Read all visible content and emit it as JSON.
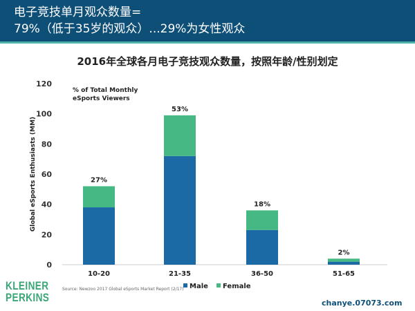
{
  "header": {
    "line1": "电子竞技单月观众数量=",
    "line2": "79%（低于35岁的观众）...29%为女性观众"
  },
  "colors": {
    "male": "#1b6aa5",
    "female": "#45b883",
    "header": "#0e4f78"
  },
  "chart_data": {
    "type": "bar",
    "stacked": true,
    "title": "2016年全球各月电子竞技观众数量，按照年龄/性别划定",
    "ylabel": "Global eSports Enthusiasts (MM)",
    "annotation": "% of Total Monthly eSports Viewers",
    "categories": [
      "10-20",
      "21-35",
      "36-50",
      "51-65"
    ],
    "series": [
      {
        "name": "Male",
        "values": [
          38,
          72,
          23,
          2
        ]
      },
      {
        "name": "Female",
        "values": [
          14,
          27,
          13,
          2
        ]
      }
    ],
    "data_labels": [
      "27%",
      "53%",
      "18%",
      "2%"
    ],
    "ylim": [
      0,
      120
    ],
    "yticks": [
      0,
      20,
      40,
      60,
      80,
      100,
      120
    ],
    "grid": false,
    "legend": "bottom"
  },
  "footer": {
    "source": "Source: Newzoo 2017 Global eSports Market Report (2/17)",
    "logo": "KLEINER PERKINS",
    "watermark": "chanye.07073.com"
  }
}
